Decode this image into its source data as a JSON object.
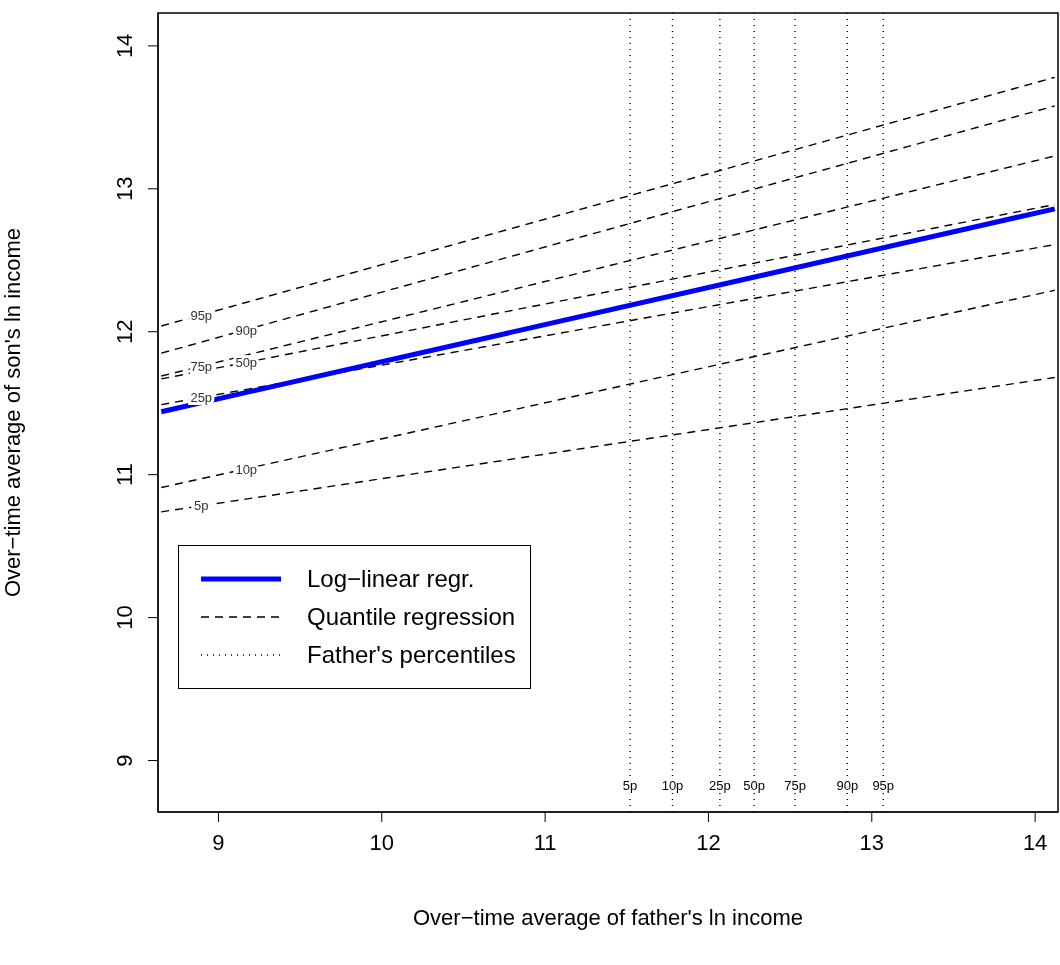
{
  "chart_data": {
    "type": "line",
    "xlabel": "Over−time average of father's ln income",
    "ylabel": "Over−time average of son's ln income",
    "xlim": [
      8.63,
      14.14
    ],
    "ylim": [
      8.64,
      14.23
    ],
    "xticks": [
      9,
      10,
      11,
      12,
      13,
      14
    ],
    "yticks": [
      9,
      10,
      11,
      12,
      13,
      14
    ],
    "grid": false,
    "legend": "bottom left",
    "marker": "none",
    "x": [
      8.65,
      14.12
    ],
    "series": [
      {
        "name": "95p",
        "color": "#000000",
        "line_style": "dashed",
        "values": [
          12.04,
          13.78
        ]
      },
      {
        "name": "90p",
        "color": "#000000",
        "line_style": "dashed",
        "values": [
          11.85,
          13.58
        ]
      },
      {
        "name": "75p",
        "color": "#000000",
        "line_style": "dashed",
        "values": [
          11.69,
          13.23
        ]
      },
      {
        "name": "50p",
        "color": "#000000",
        "line_style": "dashed",
        "values": [
          11.67,
          12.89
        ]
      },
      {
        "name": "25p",
        "color": "#000000",
        "line_style": "dashed",
        "values": [
          11.49,
          12.61
        ]
      },
      {
        "name": "10p",
        "color": "#000000",
        "line_style": "dashed",
        "values": [
          10.91,
          12.29
        ]
      },
      {
        "name": "5p",
        "color": "#000000",
        "line_style": "dashed",
        "values": [
          10.74,
          11.68
        ]
      },
      {
        "name": "Log−linear regr.",
        "color": "#0000ff",
        "line_style": "solid",
        "values": [
          11.44,
          12.86
        ]
      }
    ],
    "ref_lines": [
      {
        "axis": "x",
        "value": 11.52,
        "label": "5p",
        "line_style": "dotted",
        "color": "#000000"
      },
      {
        "axis": "x",
        "value": 11.78,
        "label": "10p",
        "line_style": "dotted",
        "color": "#000000"
      },
      {
        "axis": "x",
        "value": 12.07,
        "label": "25p",
        "line_style": "dotted",
        "color": "#000000"
      },
      {
        "axis": "x",
        "value": 12.28,
        "label": "50p",
        "line_style": "dotted",
        "color": "#000000"
      },
      {
        "axis": "x",
        "value": 12.53,
        "label": "75p",
        "line_style": "dotted",
        "color": "#000000"
      },
      {
        "axis": "x",
        "value": 12.85,
        "label": "90p",
        "line_style": "dotted",
        "color": "#000000"
      },
      {
        "axis": "x",
        "value": 13.07,
        "label": "95p",
        "line_style": "dotted",
        "color": "#000000"
      }
    ],
    "annotations": [
      "Quantile regression",
      "Father's percentiles"
    ]
  }
}
